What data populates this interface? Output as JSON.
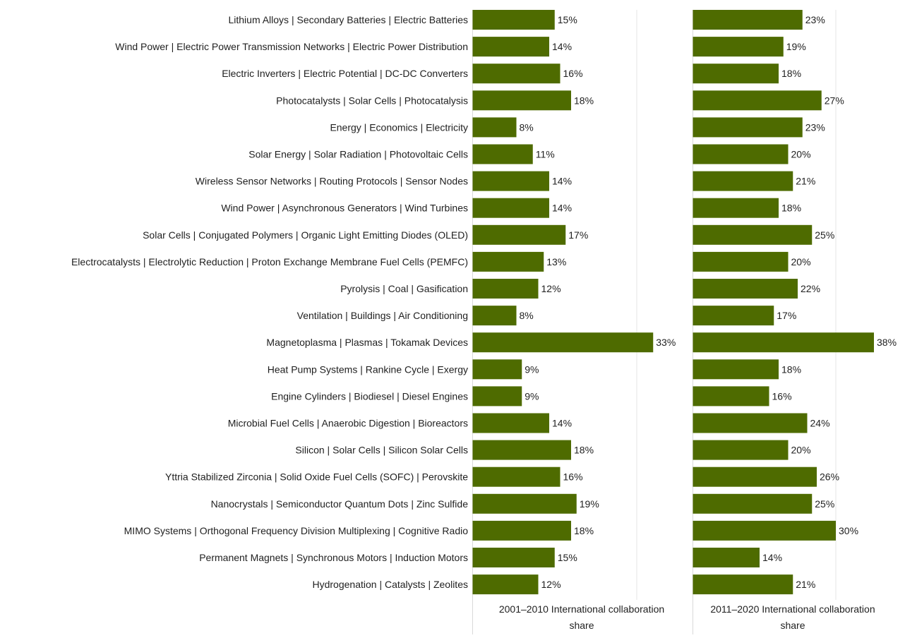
{
  "chart_data": {
    "type": "bar",
    "orientation": "horizontal",
    "categories": [
      "Lithium Alloys | Secondary Batteries | Electric Batteries",
      "Wind Power | Electric Power Transmission Networks | Electric Power Distribution",
      "Electric Inverters | Electric Potential | DC-DC Converters",
      "Photocatalysts | Solar Cells | Photocatalysis",
      "Energy | Economics | Electricity",
      "Solar Energy | Solar Radiation | Photovoltaic Cells",
      "Wireless Sensor Networks | Routing Protocols | Sensor Nodes",
      "Wind Power | Asynchronous Generators | Wind Turbines",
      "Solar Cells | Conjugated Polymers | Organic Light Emitting Diodes (OLED)",
      "Electrocatalysts | Electrolytic Reduction | Proton Exchange Membrane Fuel Cells (PEMFC)",
      "Pyrolysis | Coal | Gasification",
      "Ventilation | Buildings | Air Conditioning",
      "Magnetoplasma | Plasmas | Tokamak Devices",
      "Heat Pump Systems | Rankine Cycle | Exergy",
      "Engine Cylinders | Biodiesel | Diesel Engines",
      "Microbial Fuel Cells | Anaerobic Digestion | Bioreactors",
      "Silicon | Solar Cells | Silicon Solar Cells",
      "Yttria Stabilized Zirconia | Solid Oxide Fuel Cells (SOFC) | Perovskite",
      "Nanocrystals | Semiconductor Quantum Dots | Zinc Sulfide",
      "MIMO Systems | Orthogonal Frequency Division Multiplexing | Cognitive Radio",
      "Permanent Magnets | Synchronous Motors | Induction Motors",
      "Hydrogenation | Catalysts | Zeolites"
    ],
    "series": [
      {
        "name": "2001–2010 International collaboration share",
        "values": [
          15,
          14,
          16,
          18,
          8,
          11,
          14,
          14,
          17,
          13,
          12,
          8,
          33,
          9,
          9,
          14,
          18,
          16,
          19,
          18,
          15,
          12
        ],
        "labels": [
          "15%",
          "14%",
          "16%",
          "18%",
          "8%",
          "11%",
          "14%",
          "14%",
          "17%",
          "13%",
          "12%",
          "8%",
          "33%",
          "9%",
          "9%",
          "14%",
          "18%",
          "16%",
          "19%",
          "18%",
          "15%",
          "12%"
        ]
      },
      {
        "name": "2011–2020 International collaboration share",
        "values": [
          23,
          19,
          18,
          27,
          23,
          20,
          21,
          18,
          25,
          20,
          22,
          17,
          38,
          18,
          16,
          24,
          20,
          26,
          25,
          30,
          14,
          21
        ],
        "labels": [
          "23%",
          "19%",
          "18%",
          "27%",
          "23%",
          "20%",
          "21%",
          "18%",
          "25%",
          "20%",
          "22%",
          "17%",
          "38%",
          "18%",
          "16%",
          "24%",
          "20%",
          "26%",
          "25%",
          "30%",
          "14%",
          "21%"
        ]
      }
    ],
    "panel_titles": [
      [
        "2001–2010 International collaboration",
        "share"
      ],
      [
        "2011–2020 International collaboration",
        "share"
      ]
    ],
    "xlim": [
      0,
      40
    ],
    "gridlines": [
      30
    ],
    "grid": true,
    "legend": "none",
    "colors": {
      "bar": "#4e6b00",
      "axis": "#d9d9d9",
      "gridline": "#e6e6e6",
      "text": "#1f1f1f"
    }
  }
}
